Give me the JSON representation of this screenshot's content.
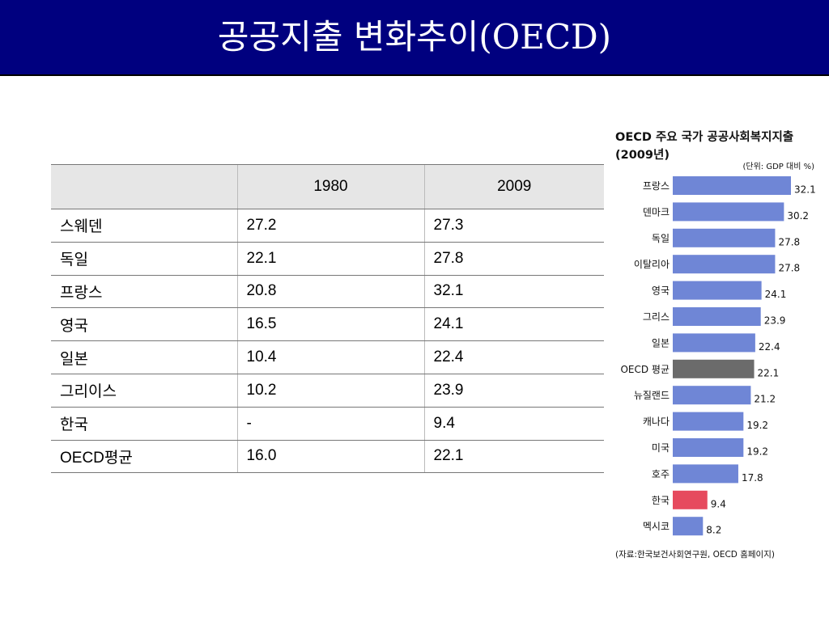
{
  "slide": {
    "title": "공공지출 변화추이(OECD)"
  },
  "table": {
    "headers": [
      "",
      "1980",
      "2009"
    ],
    "rows": [
      [
        "스웨덴",
        "27.2",
        "27.3"
      ],
      [
        "독일",
        "22.1",
        "27.8"
      ],
      [
        "프랑스",
        "20.8",
        "32.1"
      ],
      [
        "영국",
        "16.5",
        "24.1"
      ],
      [
        "일본",
        "10.4",
        "22.4"
      ],
      [
        "그리이스",
        "10.2",
        "23.9"
      ],
      [
        "한국",
        "-",
        "9.4"
      ],
      [
        "OECD평균",
        "16.0",
        "22.1"
      ]
    ]
  },
  "chart_data": {
    "type": "bar",
    "orientation": "horizontal",
    "title": "OECD 주요 국가 공공사회복지지출",
    "subtitle": "(2009년)",
    "unit_note": "(단위: GDP 대비 %)",
    "source": "(자료:한국보건사회연구원, OECD 홈페이지)",
    "categories": [
      "프랑스",
      "덴마크",
      "독일",
      "이탈리아",
      "영국",
      "그리스",
      "일본",
      "OECD 평균",
      "뉴질랜드",
      "캐나다",
      "미국",
      "호주",
      "한국",
      "멕시코"
    ],
    "values": [
      32.1,
      30.2,
      27.8,
      27.8,
      24.1,
      23.9,
      22.4,
      22.1,
      21.2,
      19.2,
      19.2,
      17.8,
      9.4,
      8.2
    ],
    "value_labels": [
      "32.1",
      "30.2",
      "27.8",
      "27.8",
      "24.1",
      "23.9",
      "22.4",
      "22.1",
      "21.2",
      "19.2",
      "19.2",
      "17.8",
      "9.4",
      "8.2"
    ],
    "colors": {
      "default": "#6f86d6",
      "oecd_average": "#6b6b6b",
      "korea": "#e64a5e"
    },
    "highlight": {
      "OECD 평균": "oecd_average",
      "한국": "korea"
    },
    "grid": false,
    "legend": "none"
  }
}
